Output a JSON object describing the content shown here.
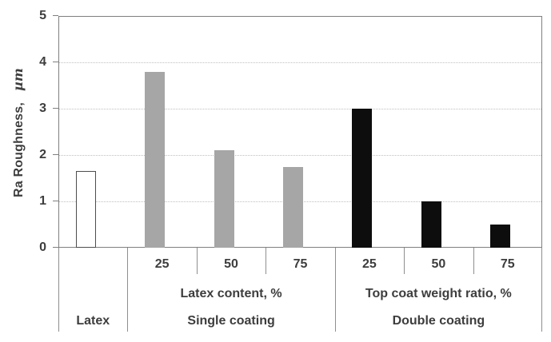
{
  "chart_data": {
    "type": "bar",
    "title": "",
    "ylabel": "Ra Roughness, µm",
    "ylabel_main": "Ra Roughness,",
    "ylabel_unit": "µm",
    "xlabel": "",
    "ylim": [
      0,
      5
    ],
    "yticks": [
      "0",
      "1",
      "2",
      "3",
      "4",
      "5"
    ],
    "grid": "horizontal dotted gridlines at 1, 2, 3, 4",
    "legend_position": "none",
    "groups": [
      {
        "name": "Latex",
        "sub_axis_label": "",
        "bar_fill": "#ffffff",
        "bar_border": "#4d4d4d",
        "bars": [
          {
            "category": "",
            "value": 1.65
          }
        ]
      },
      {
        "name": "Single coating",
        "sub_axis_label": "Latex content, %",
        "bar_fill": "#a6a6a6",
        "bar_border": "#a6a6a6",
        "bars": [
          {
            "category": "25",
            "value": 3.8
          },
          {
            "category": "50",
            "value": 2.1
          },
          {
            "category": "75",
            "value": 1.75
          }
        ]
      },
      {
        "name": "Double coating",
        "sub_axis_label": "Top coat weight ratio, %",
        "bar_fill": "#0d0d0d",
        "bar_border": "#0d0d0d",
        "bars": [
          {
            "category": "25",
            "value": 3.0
          },
          {
            "category": "50",
            "value": 1.0
          },
          {
            "category": "75",
            "value": 0.5
          }
        ]
      }
    ],
    "colors": {
      "axis_line": "#7f7f7f",
      "gridline": "#bfbfbf",
      "separator_line": "#8f8f8f",
      "text": "#3d3d3d",
      "background": "#ffffff"
    }
  }
}
